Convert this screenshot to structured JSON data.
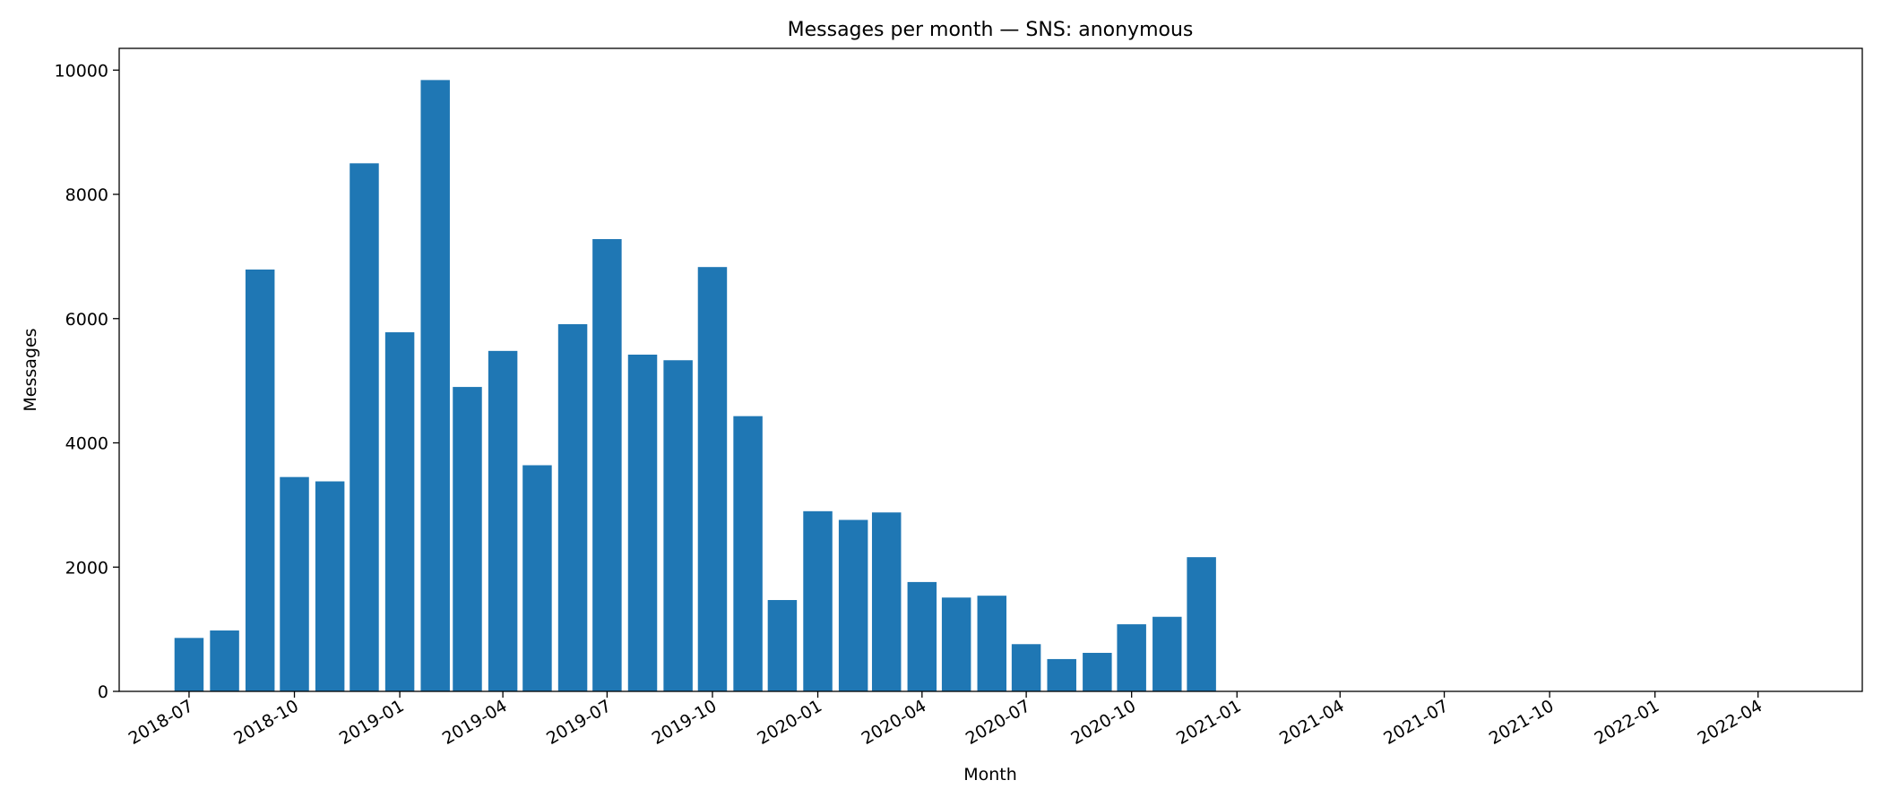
{
  "chart_data": {
    "type": "bar",
    "title": "Messages per month — SNS: anonymous",
    "xlabel": "Month",
    "ylabel": "Messages",
    "ylim": [
      0,
      10350
    ],
    "xlim": [
      "2018-05-01",
      "2022-07-01"
    ],
    "yticks": [
      0,
      2000,
      4000,
      6000,
      8000,
      10000
    ],
    "xticks": [
      "2018-07",
      "2018-10",
      "2019-01",
      "2019-04",
      "2019-07",
      "2019-10",
      "2020-01",
      "2020-04",
      "2020-07",
      "2020-10",
      "2021-01",
      "2021-04",
      "2021-07",
      "2021-10",
      "2022-01",
      "2022-04"
    ],
    "grid": false,
    "color": "#1f77b4",
    "categories": [
      "2018-07",
      "2018-08",
      "2018-09",
      "2018-10",
      "2018-11",
      "2018-12",
      "2019-01",
      "2019-02",
      "2019-03",
      "2019-04",
      "2019-05",
      "2019-06",
      "2019-07",
      "2019-08",
      "2019-09",
      "2019-10",
      "2019-11",
      "2019-12",
      "2020-01",
      "2020-02",
      "2020-03",
      "2020-04",
      "2020-05",
      "2020-06",
      "2020-07",
      "2020-08",
      "2020-09",
      "2020-10",
      "2020-11",
      "2020-12"
    ],
    "values": [
      860,
      980,
      6790,
      3450,
      3380,
      8500,
      5780,
      9840,
      4900,
      5480,
      3640,
      5910,
      7280,
      5420,
      5330,
      6830,
      4430,
      1470,
      2900,
      2760,
      2880,
      1760,
      1510,
      1540,
      760,
      520,
      620,
      1080,
      1200,
      2160
    ]
  }
}
